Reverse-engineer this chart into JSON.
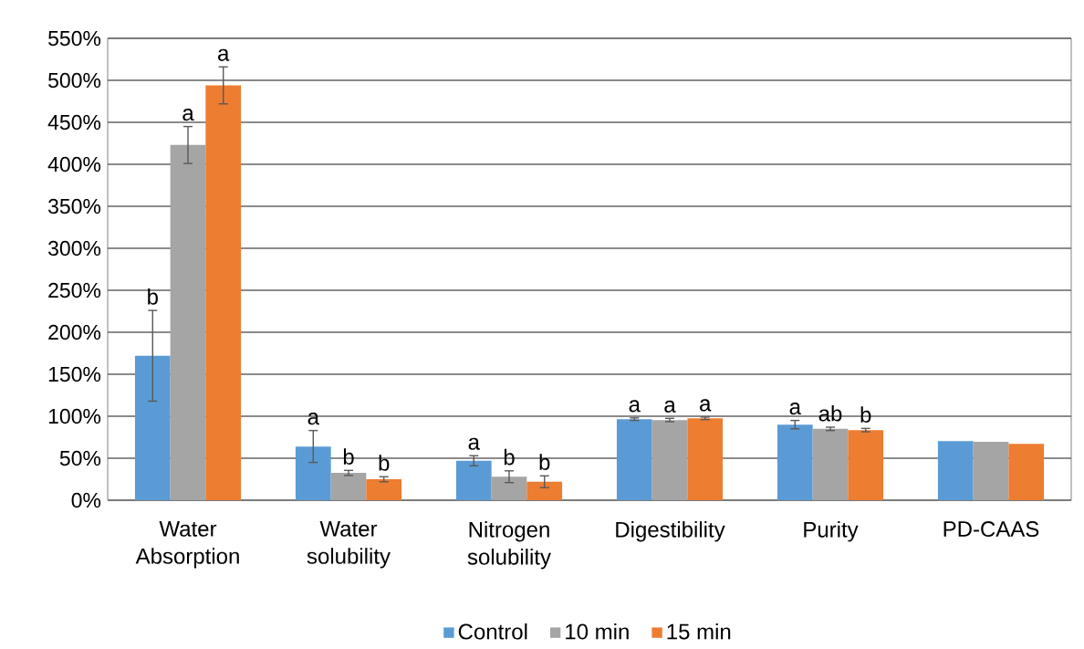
{
  "chart_data": {
    "type": "bar",
    "categories": [
      "Water Absorption",
      "Water solubility",
      "Nitrogen solubility",
      "Digestibility",
      "Purity",
      "PD-CAAS"
    ],
    "series": [
      {
        "name": "Control",
        "color": "#5b9bd5",
        "values": [
          172,
          64,
          47,
          96.5,
          90,
          70.5
        ],
        "errors": [
          54,
          19,
          6,
          1.5,
          5,
          null
        ],
        "value_labels": [
          "b",
          "a",
          "a",
          "a",
          "a",
          null
        ]
      },
      {
        "name": "10 min",
        "color": "#a5a5a5",
        "values": [
          423,
          32.5,
          28,
          95.5,
          85,
          69.5
        ],
        "errors": [
          22,
          3,
          7,
          2,
          2,
          null
        ],
        "value_labels": [
          "a",
          "b",
          "b",
          "a",
          "ab",
          null
        ]
      },
      {
        "name": "15 min",
        "color": "#ed7d31",
        "values": [
          494,
          25,
          22,
          97.5,
          83.5,
          67
        ],
        "errors": [
          22,
          3,
          7,
          1.5,
          2,
          null
        ],
        "value_labels": [
          "a",
          "b",
          "b",
          "a",
          "b",
          null
        ]
      }
    ],
    "ylim": [
      0,
      550
    ],
    "yticks": [
      {
        "value": 0,
        "label": "0%"
      },
      {
        "value": 50,
        "label": "50%"
      },
      {
        "value": 100,
        "label": "100%"
      },
      {
        "value": 150,
        "label": "150%"
      },
      {
        "value": 200,
        "label": "200%"
      },
      {
        "value": 250,
        "label": "250%"
      },
      {
        "value": 300,
        "label": "300%"
      },
      {
        "value": 350,
        "label": "350%"
      },
      {
        "value": 400,
        "label": "400%"
      },
      {
        "value": 450,
        "label": "450%"
      },
      {
        "value": 500,
        "label": "500%"
      },
      {
        "value": 550,
        "label": "550%"
      }
    ],
    "grid": "y",
    "legend": "bottom"
  }
}
